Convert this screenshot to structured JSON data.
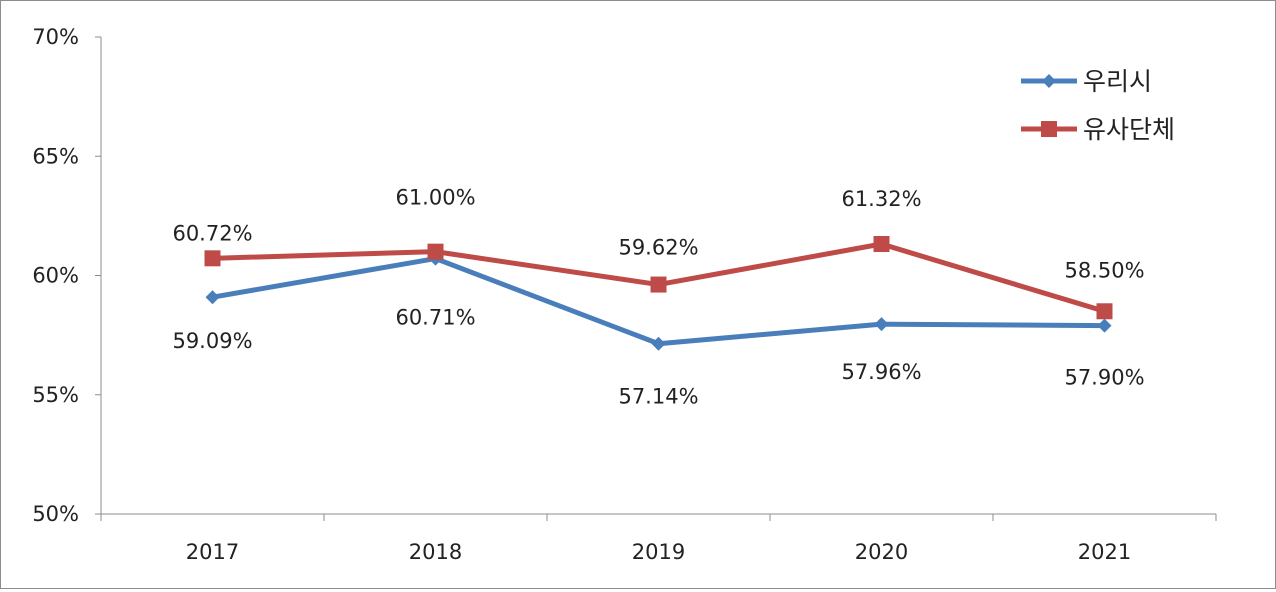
{
  "chart_data": {
    "type": "line",
    "title": "",
    "xlabel": "",
    "ylabel": "",
    "categories": [
      "2017",
      "2018",
      "2019",
      "2020",
      "2021"
    ],
    "ylim": [
      50,
      70
    ],
    "yticks": [
      50,
      55,
      60,
      65,
      70
    ],
    "ytick_labels": [
      "50%",
      "55%",
      "60%",
      "65%",
      "70%"
    ],
    "grid": false,
    "legend_position": "top-right",
    "series": [
      {
        "name": "우리시",
        "color": "#4a7ebb",
        "marker": "diamond",
        "values": [
          59.09,
          60.71,
          57.14,
          57.96,
          57.9
        ],
        "labels": [
          "59.09%",
          "60.71%",
          "57.14%",
          "57.96%",
          "57.90%"
        ],
        "label_position": "below"
      },
      {
        "name": "유사단체",
        "color": "#be4b48",
        "marker": "square",
        "values": [
          60.72,
          61.0,
          59.62,
          61.32,
          58.5
        ],
        "labels": [
          "60.72%",
          "61.00%",
          "59.62%",
          "61.32%",
          "58.50%"
        ],
        "label_position": "above"
      }
    ]
  }
}
